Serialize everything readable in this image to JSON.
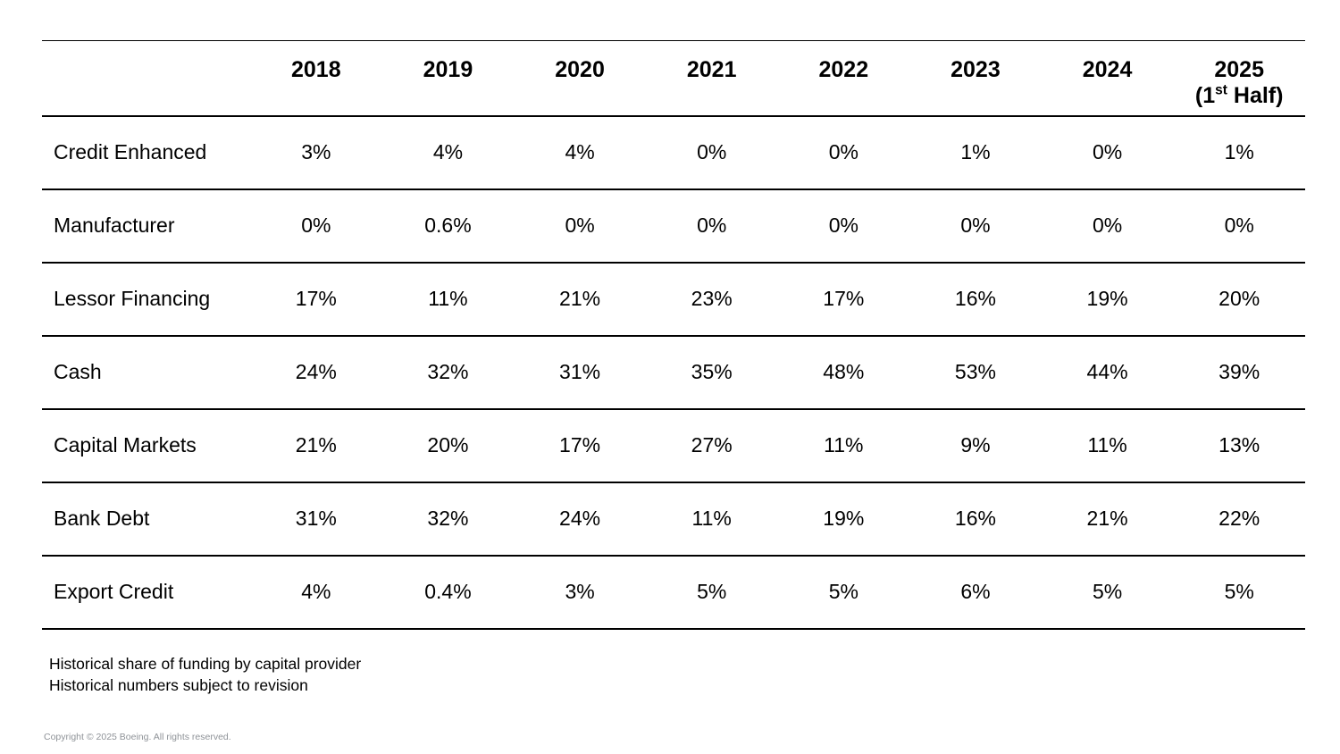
{
  "table": {
    "header": {
      "years": [
        "2018",
        "2019",
        "2020",
        "2021",
        "2022",
        "2023",
        "2024"
      ],
      "last_year": {
        "line1": "2025",
        "line2_prefix": "(1",
        "line2_sup": "st",
        "line2_suffix": " Half)"
      }
    },
    "rows": [
      {
        "label": "Credit Enhanced",
        "values": [
          "3%",
          "4%",
          "4%",
          "0%",
          "0%",
          "1%",
          "0%",
          "1%"
        ]
      },
      {
        "label": "Manufacturer",
        "values": [
          "0%",
          "0.6%",
          "0%",
          "0%",
          "0%",
          "0%",
          "0%",
          "0%"
        ]
      },
      {
        "label": "Lessor Financing",
        "values": [
          "17%",
          "11%",
          "21%",
          "23%",
          "17%",
          "16%",
          "19%",
          "20%"
        ]
      },
      {
        "label": "Cash",
        "values": [
          "24%",
          "32%",
          "31%",
          "35%",
          "48%",
          "53%",
          "44%",
          "39%"
        ]
      },
      {
        "label": "Capital Markets",
        "values": [
          "21%",
          "20%",
          "17%",
          "27%",
          "11%",
          "9%",
          "11%",
          "13%"
        ]
      },
      {
        "label": "Bank Debt",
        "values": [
          "31%",
          "32%",
          "24%",
          "11%",
          "19%",
          "16%",
          "21%",
          "22%"
        ]
      },
      {
        "label": "Export Credit",
        "values": [
          "4%",
          "0.4%",
          "3%",
          "5%",
          "5%",
          "6%",
          "5%",
          "5%"
        ]
      }
    ]
  },
  "notes": [
    "Historical share of funding by capital provider",
    "Historical numbers subject to revision"
  ],
  "footer": {
    "copyright": "Copyright © 2025 Boeing. All rights reserved."
  },
  "colors": {
    "text": "#000000",
    "rule": "#000000",
    "copyright_gray": "#8f9398",
    "background": "#ffffff"
  },
  "chart_data": {
    "type": "table",
    "title": "Historical share of funding by capital provider",
    "unit": "%",
    "categories": [
      "2018",
      "2019",
      "2020",
      "2021",
      "2022",
      "2023",
      "2024",
      "2025 (1st Half)"
    ],
    "series": [
      {
        "name": "Credit Enhanced",
        "values": [
          3,
          4,
          4,
          0,
          0,
          1,
          0,
          1
        ]
      },
      {
        "name": "Manufacturer",
        "values": [
          0,
          0.6,
          0,
          0,
          0,
          0,
          0,
          0
        ]
      },
      {
        "name": "Lessor Financing",
        "values": [
          17,
          11,
          21,
          23,
          17,
          16,
          19,
          20
        ]
      },
      {
        "name": "Cash",
        "values": [
          24,
          32,
          31,
          35,
          48,
          53,
          44,
          39
        ]
      },
      {
        "name": "Capital Markets",
        "values": [
          21,
          20,
          17,
          27,
          11,
          9,
          11,
          13
        ]
      },
      {
        "name": "Bank Debt",
        "values": [
          31,
          32,
          24,
          11,
          19,
          16,
          21,
          22
        ]
      },
      {
        "name": "Export Credit",
        "values": [
          4,
          0.4,
          3,
          5,
          5,
          6,
          5,
          5
        ]
      }
    ],
    "layout": {
      "grid": "horizontal-rules-only",
      "first_column": "row labels",
      "values_alignment": "center"
    }
  }
}
